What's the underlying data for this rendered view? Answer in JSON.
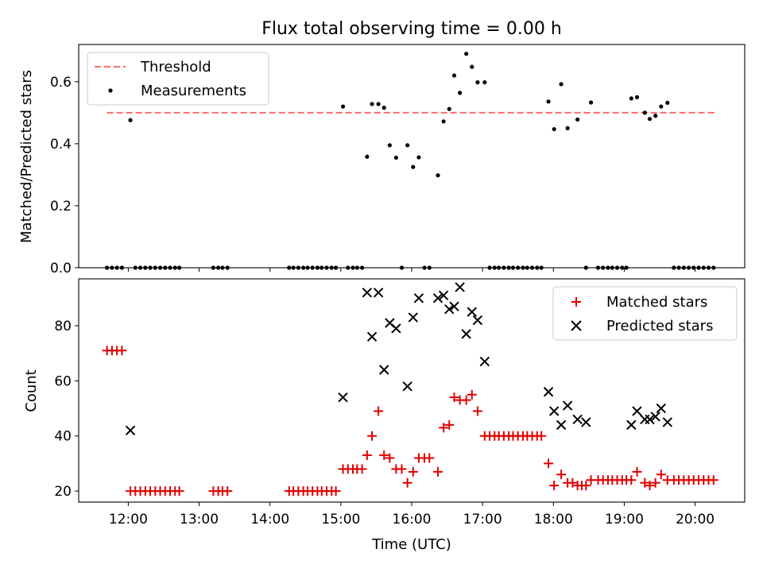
{
  "title": "Flux total observing time = 0.00 h",
  "colors": {
    "threshold": "#ff6b6b",
    "matched": "#e00000",
    "predicted": "#000000",
    "measurement": "#000000"
  },
  "chart_data": [
    {
      "type": "scatter",
      "ylabel": "Matched/Predicted stars",
      "xlim": [
        11.3,
        20.7
      ],
      "ylim": [
        0,
        0.72
      ],
      "yticks": [
        0.0,
        0.2,
        0.4,
        0.6
      ],
      "ytick_labels": [
        "0.0",
        "0.2",
        "0.4",
        "0.6"
      ],
      "legend": {
        "position": "top-left",
        "entries": [
          "Threshold",
          "Measurements"
        ]
      },
      "threshold": {
        "x": [
          11.7,
          20.3
        ],
        "y": 0.5
      },
      "measurements": {
        "x": [
          11.7,
          11.77,
          11.84,
          11.91,
          12.03,
          12.1,
          12.17,
          12.24,
          12.31,
          12.38,
          12.45,
          12.52,
          12.59,
          12.66,
          12.72,
          13.2,
          13.27,
          13.33,
          13.4,
          14.27,
          14.33,
          14.4,
          14.47,
          14.53,
          14.6,
          14.67,
          14.73,
          14.8,
          14.87,
          14.93,
          15.03,
          15.1,
          15.17,
          15.23,
          15.3,
          15.37,
          15.44,
          15.53,
          15.61,
          15.69,
          15.78,
          15.86,
          15.94,
          16.02,
          16.1,
          16.18,
          16.25,
          16.37,
          16.45,
          16.53,
          16.6,
          16.68,
          16.77,
          16.85,
          16.93,
          17.03,
          17.1,
          17.17,
          17.23,
          17.3,
          17.37,
          17.43,
          17.5,
          17.57,
          17.63,
          17.7,
          17.77,
          17.83,
          17.93,
          18.01,
          18.11,
          18.2,
          18.34,
          18.46,
          18.53,
          18.63,
          18.7,
          18.77,
          18.83,
          18.9,
          18.97,
          19.03,
          19.1,
          19.18,
          19.29,
          19.36,
          19.44,
          19.52,
          19.61,
          19.7,
          19.77,
          19.84,
          19.91,
          19.98,
          20.05,
          20.12,
          20.19,
          20.26
        ],
        "y": [
          0,
          0,
          0,
          0,
          0.476,
          0,
          0,
          0,
          0,
          0,
          0,
          0,
          0,
          0,
          0,
          0,
          0,
          0,
          0,
          0,
          0,
          0,
          0,
          0,
          0,
          0,
          0,
          0,
          0,
          0,
          0.52,
          0,
          0,
          0,
          0,
          0.358,
          0.528,
          0.528,
          0.516,
          0.395,
          0.355,
          0,
          0.395,
          0.325,
          0.356,
          0,
          0,
          0.298,
          0.472,
          0.512,
          0.62,
          0.564,
          0.69,
          0.648,
          0.598,
          0.598,
          0,
          0,
          0,
          0,
          0,
          0,
          0,
          0,
          0,
          0,
          0,
          0,
          0.536,
          0.447,
          0.592,
          0.45,
          0.478,
          0,
          0.533,
          0,
          0,
          0,
          0,
          0,
          0,
          0,
          0.546,
          0.55,
          0.5,
          0.48,
          0.49,
          0.52,
          0.532,
          0,
          0,
          0,
          0,
          0,
          0,
          0,
          0,
          0
        ]
      }
    },
    {
      "type": "scatter",
      "xlabel": "Time (UTC)",
      "ylabel": "Count",
      "xlim": [
        11.3,
        20.7
      ],
      "ylim": [
        16,
        97
      ],
      "yticks": [
        20,
        40,
        60,
        80
      ],
      "ytick_labels": [
        "20",
        "40",
        "60",
        "80"
      ],
      "xticks": [
        12,
        13,
        14,
        15,
        16,
        17,
        18,
        19,
        20
      ],
      "xtick_labels": [
        "12:00",
        "13:00",
        "14:00",
        "15:00",
        "16:00",
        "17:00",
        "18:00",
        "19:00",
        "20:00"
      ],
      "legend": {
        "position": "top-right",
        "entries": [
          "Matched stars",
          "Predicted stars"
        ]
      },
      "series": [
        {
          "name": "Matched stars",
          "x": [
            11.7,
            11.77,
            11.84,
            11.91,
            12.03,
            12.1,
            12.17,
            12.24,
            12.31,
            12.38,
            12.45,
            12.52,
            12.59,
            12.66,
            12.72,
            13.2,
            13.27,
            13.33,
            13.4,
            14.27,
            14.33,
            14.4,
            14.47,
            14.53,
            14.6,
            14.67,
            14.73,
            14.8,
            14.87,
            14.93,
            15.03,
            15.1,
            15.17,
            15.23,
            15.3,
            15.37,
            15.44,
            15.53,
            15.61,
            15.69,
            15.78,
            15.86,
            15.94,
            16.02,
            16.1,
            16.18,
            16.25,
            16.37,
            16.45,
            16.53,
            16.6,
            16.68,
            16.77,
            16.85,
            16.93,
            17.03,
            17.1,
            17.17,
            17.23,
            17.3,
            17.37,
            17.43,
            17.5,
            17.57,
            17.63,
            17.7,
            17.77,
            17.83,
            17.93,
            18.01,
            18.11,
            18.2,
            18.27,
            18.34,
            18.4,
            18.46,
            18.53,
            18.63,
            18.7,
            18.77,
            18.83,
            18.9,
            18.97,
            19.03,
            19.1,
            19.18,
            19.29,
            19.36,
            19.44,
            19.52,
            19.61,
            19.7,
            19.77,
            19.84,
            19.91,
            19.98,
            20.05,
            20.12,
            20.19,
            20.26
          ],
          "y": [
            71,
            71,
            71,
            71,
            20,
            20,
            20,
            20,
            20,
            20,
            20,
            20,
            20,
            20,
            20,
            20,
            20,
            20,
            20,
            20,
            20,
            20,
            20,
            20,
            20,
            20,
            20,
            20,
            20,
            20,
            28,
            28,
            28,
            28,
            28,
            33,
            40,
            49,
            33,
            32,
            28,
            28,
            23,
            27,
            32,
            32,
            32,
            27,
            43,
            44,
            54,
            53,
            53,
            55,
            49,
            40,
            40,
            40,
            40,
            40,
            40,
            40,
            40,
            40,
            40,
            40,
            40,
            40,
            30,
            22,
            26,
            23,
            23,
            22,
            22,
            22,
            24,
            24,
            24,
            24,
            24,
            24,
            24,
            24,
            24,
            27,
            23,
            22,
            23,
            26,
            24,
            24,
            24,
            24,
            24,
            24,
            24,
            24,
            24,
            24
          ]
        },
        {
          "name": "Predicted stars",
          "x": [
            12.03,
            15.03,
            15.37,
            15.44,
            15.53,
            15.61,
            15.69,
            15.78,
            15.94,
            16.02,
            16.1,
            16.37,
            16.45,
            16.53,
            16.6,
            16.68,
            16.77,
            16.85,
            16.93,
            17.03,
            17.93,
            18.01,
            18.11,
            18.2,
            18.34,
            18.46,
            19.1,
            19.18,
            19.29,
            19.36,
            19.44,
            19.52,
            19.61
          ],
          "y": [
            42,
            54,
            92,
            76,
            92,
            64,
            81,
            79,
            58,
            83,
            90,
            90,
            91,
            86,
            87,
            94,
            77,
            85,
            82,
            67,
            56,
            49,
            44,
            51,
            46,
            45,
            44,
            49,
            46,
            46,
            47,
            50,
            45
          ]
        }
      ]
    }
  ]
}
